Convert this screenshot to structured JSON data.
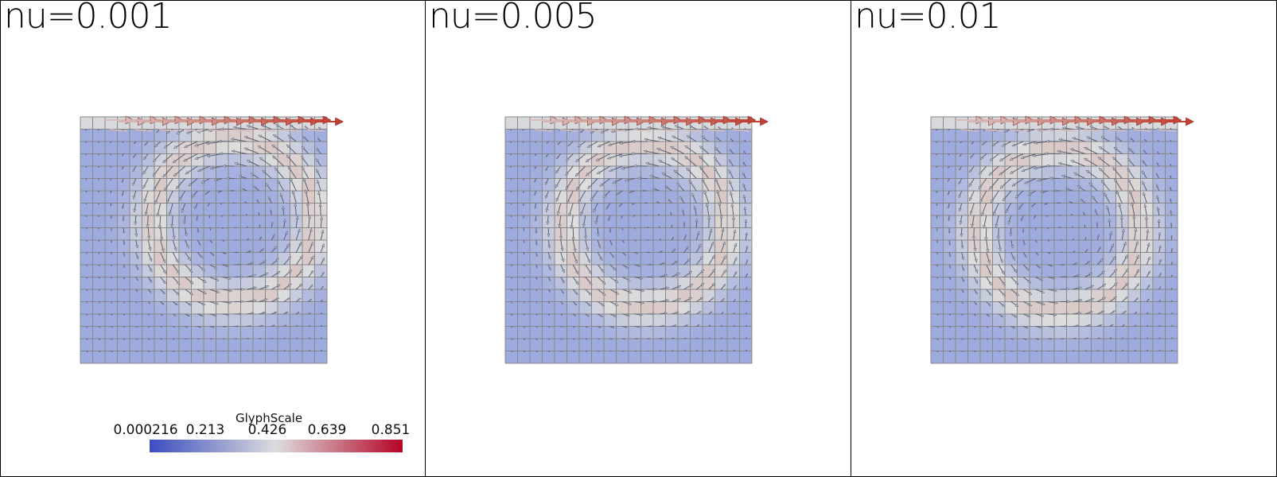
{
  "views": [
    {
      "title": "nu=0.001",
      "nu": 0.001
    },
    {
      "title": "nu=0.005",
      "nu": 0.005
    },
    {
      "title": "nu=0.01",
      "nu": 0.01
    }
  ],
  "colorbar": {
    "title": "GlyphScale",
    "ticks": [
      "0.000216",
      "0.213",
      "0.426",
      "0.639",
      "0.851"
    ],
    "range": [
      0.000216,
      0.851
    ],
    "colors": [
      "#3b4cc0",
      "#dddddd",
      "#b40426"
    ]
  },
  "mesh": {
    "cells": 20
  },
  "colors": {
    "background": "#ffffff",
    "mesh_line": "#888888",
    "low": "#8f9fe0",
    "mid": "#dddddd",
    "high": "#c0392b"
  }
}
